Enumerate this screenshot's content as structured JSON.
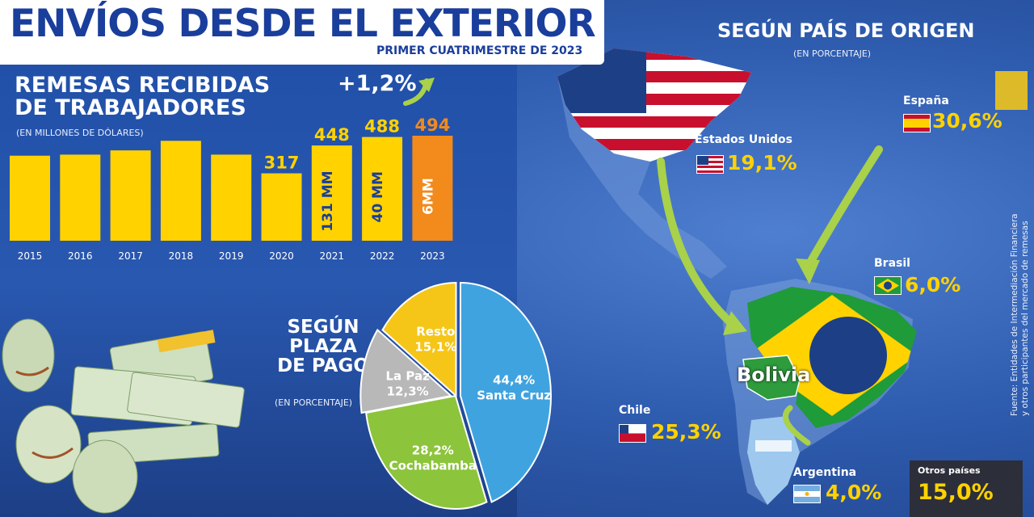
{
  "header": {
    "title": "ENVÍOS DESDE EL EXTERIOR",
    "subtitle": "PRIMER CUATRIMESTRE DE 2023"
  },
  "remesas": {
    "title_line1": "REMESAS RECIBIDAS",
    "title_line2": "DE TRABAJADORES",
    "unit": "(EN MILLONES DE DÓLARES)",
    "growth": "+1,2%"
  },
  "origen": {
    "title": "SEGÚN PAÍS DE ORIGEN",
    "unit": "(EN PORCENTAJE)",
    "bolivia_label": "Bolivia"
  },
  "plaza": {
    "title_line1": "SEGÚN",
    "title_line2": "PLAZA",
    "title_line3": "DE PAGO",
    "unit": "(EN PORCENTAJE)"
  },
  "otros": {
    "label": "Otros países",
    "value": "15,0%"
  },
  "source": {
    "line1": "Fuente: Entidades de Intermediación Financiera",
    "line2": "y otros participantes del mercado de remesas"
  },
  "colors": {
    "yellow": "#ffd200",
    "orange": "#f28a1c",
    "santa_cruz": "#3fa3e0",
    "cochabamba": "#8cc43c",
    "la_paz": "#b8b8b8",
    "resto": "#f5c518",
    "arrow": "#a9d14a"
  },
  "chart_data": [
    {
      "type": "bar",
      "title": "REMESAS RECIBIDAS DE TRABAJADORES",
      "ylabel": "(EN MILLONES DE DÓLARES)",
      "categories": [
        "2015",
        "2016",
        "2017",
        "2018",
        "2019",
        "2020",
        "2021",
        "2022",
        "2023"
      ],
      "values": [
        400,
        405,
        425,
        470,
        405,
        317,
        448,
        488,
        494
      ],
      "data_labels": [
        "",
        "",
        "",
        "",
        "",
        "317",
        "448",
        "488",
        "494"
      ],
      "bar_notes": [
        "",
        "",
        "",
        "",
        "",
        "",
        "131 MM",
        "40 MM",
        "6MM"
      ],
      "highlight": [
        "2023"
      ],
      "ylim": [
        0,
        520
      ]
    },
    {
      "type": "pie",
      "title": "SEGÚN PLAZA DE PAGO",
      "labels": [
        "Santa Cruz",
        "Cochabamba",
        "La Paz",
        "Resto"
      ],
      "values": [
        44.4,
        28.2,
        12.3,
        15.1
      ],
      "value_labels": [
        "44,4%",
        "28,2%",
        "12,3%",
        "15,1%"
      ]
    },
    {
      "type": "table",
      "title": "SEGÚN PAÍS DE ORIGEN",
      "rows": [
        {
          "country": "Estados Unidos",
          "value": 19.1,
          "label": "19,1%"
        },
        {
          "country": "España",
          "value": 30.6,
          "label": "30,6%"
        },
        {
          "country": "Brasil",
          "value": 6.0,
          "label": "6,0%"
        },
        {
          "country": "Chile",
          "value": 25.3,
          "label": "25,3%"
        },
        {
          "country": "Argentina",
          "value": 4.0,
          "label": "4,0%"
        }
      ]
    }
  ]
}
